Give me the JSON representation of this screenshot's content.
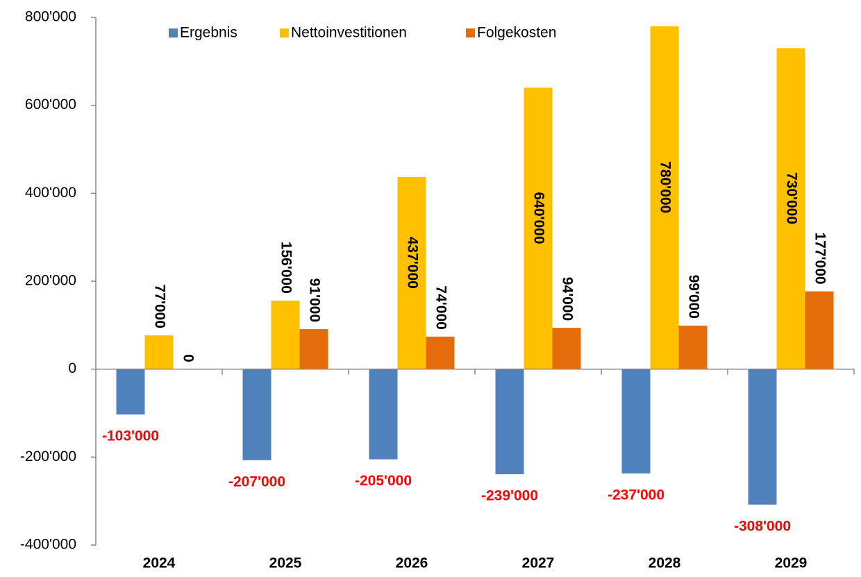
{
  "chart_data": {
    "type": "bar",
    "categories": [
      "2024",
      "2025",
      "2026",
      "2027",
      "2028",
      "2029"
    ],
    "series": [
      {
        "name": "Ergebnis",
        "color": "#4f81bd",
        "values": [
          -103000,
          -207000,
          -205000,
          -239000,
          -237000,
          -308000
        ],
        "value_labels": [
          "-103'000",
          "-207'000",
          "-205'000",
          "-239'000",
          "-237'000",
          "-308'000"
        ]
      },
      {
        "name": "Nettoinvestitionen",
        "color": "#ffc000",
        "values": [
          77000,
          156000,
          437000,
          640000,
          780000,
          730000
        ],
        "value_labels": [
          "77'000",
          "156'000",
          "437'000",
          "640'000",
          "780'000",
          "730'000"
        ]
      },
      {
        "name": "Folgekosten",
        "color": "#e46c0a",
        "values": [
          0,
          91000,
          74000,
          94000,
          99000,
          177000
        ],
        "value_labels": [
          "0",
          "91'000",
          "74'000",
          "94'000",
          "99'000",
          "177'000"
        ]
      }
    ],
    "ylim": [
      -400000,
      800000
    ],
    "yticks": [
      {
        "value": -400000,
        "label": "-400'000"
      },
      {
        "value": -200000,
        "label": "-200'000"
      },
      0,
      {
        "value": 200000,
        "label": "200'000"
      },
      {
        "value": 400000,
        "label": "400'000"
      },
      {
        "value": 600000,
        "label": "600'000"
      },
      {
        "value": 800000,
        "label": "800'000"
      }
    ],
    "legend": "top"
  }
}
